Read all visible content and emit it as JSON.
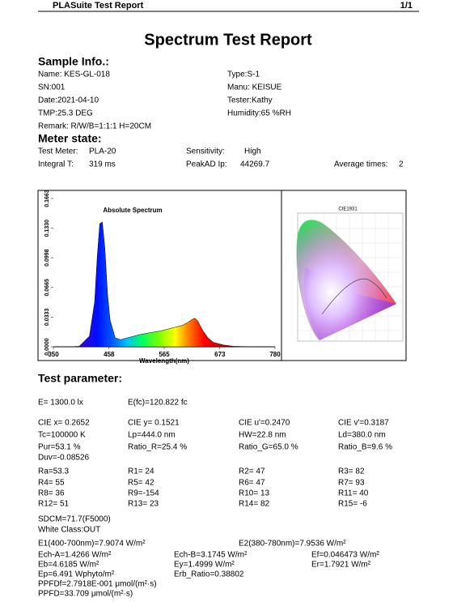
{
  "header": {
    "app": "PLASuite Test Report",
    "page": "1/1"
  },
  "title": "Spectrum Test Report",
  "sample_info": {
    "heading": "Sample Info.:",
    "rows": [
      [
        "Name: KES-GL-018",
        "Type:S-1"
      ],
      [
        "SN:001",
        "Manu: KEISUE"
      ],
      [
        "Date:2021-04-10",
        "Tester:Kathy"
      ],
      [
        "TMP:25.3 DEG",
        "Humidity:65 %RH"
      ],
      [
        "Remark: R/W/B=1:1:1   H=20CM"
      ]
    ]
  },
  "meter_state": {
    "heading": "Meter state:",
    "rows": [
      [
        "Test Meter:",
        "PLA-20",
        "Sensitivity:",
        "High"
      ],
      [
        "Integral T:",
        "319 ms",
        "PeakAD Ip:",
        "44269.7",
        "Average times:",
        "2"
      ]
    ]
  },
  "chart_data": {
    "type": "area",
    "title": "Absolute Spectrum",
    "x_label": "Wavelength(nm)",
    "x": [
      380,
      400,
      420,
      430,
      435,
      440,
      445,
      450,
      455,
      460,
      470,
      480,
      500,
      520,
      540,
      560,
      580,
      600,
      610,
      620,
      625,
      630,
      640,
      650,
      660,
      680,
      700,
      740,
      780
    ],
    "values": [
      0,
      0.0005,
      0.012,
      0.05,
      0.1,
      0.138,
      0.14,
      0.11,
      0.06,
      0.03,
      0.01,
      0.008,
      0.011,
      0.014,
      0.016,
      0.018,
      0.021,
      0.024,
      0.027,
      0.031,
      0.032,
      0.029,
      0.018,
      0.01,
      0.005,
      0.002,
      0.0005,
      0,
      0
    ],
    "xlim": [
      350,
      780
    ],
    "xticks": [
      350,
      458,
      565,
      673,
      780
    ],
    "ylim": [
      0,
      0.1663
    ],
    "yticks": [
      {
        "value": 0,
        "label": "0.0000"
      },
      0.0333,
      0.0665,
      0.0998,
      {
        "value": 0.133,
        "label": "0.1330"
      },
      0.1663
    ]
  },
  "cie": {
    "title": "CIE1931"
  },
  "test_parameter": {
    "heading": "Test parameter:",
    "rows": [
      [
        "E=  1300.0 lx",
        "E(fc)=120.822 fc"
      ],
      [
        "CIE x= 0.2652",
        "CIE y= 0.1521",
        "CIE u'=0.2470",
        "CIE v'=0.3187"
      ],
      [
        "Tc=100000 K",
        "Lp=444.0 nm",
        "HW=22.8 nm",
        "Ld=380.0 nm"
      ],
      [
        "Pur=53.1 %",
        "Ratio_R=25.4 %",
        "Ratio_G=65.0 %",
        "Ratio_B=9.6 %"
      ],
      [
        "Duv=-0.08526"
      ],
      [
        "Ra=53.3",
        "R1= 24",
        "R2= 47",
        "R3= 82"
      ],
      [
        "R4= 55",
        "R5= 42",
        "R6= 47",
        "R7= 93"
      ],
      [
        "R8= 36",
        "R9=-154",
        "R10= 13",
        "R11= 40"
      ],
      [
        "R12= 51",
        "R13= 23",
        "R14= 82",
        "R15= -6"
      ],
      [
        "SDCM=71.7(F5000)"
      ],
      [
        "White Class:OUT"
      ]
    ],
    "energy_rows": [
      [
        "E1(400-700nm)=7.9074 W/m²",
        "E2(380-780nm)=7.9536 W/m²"
      ],
      [
        "Ech-A=1.4266 W/m²",
        "Ech-B=3.1745 W/m²",
        "Ef=0.046473 W/m²"
      ],
      [
        "Eb=4.6185 W/m²",
        "Ey=1.4999 W/m²",
        "Er=1.7921 W/m²"
      ],
      [
        "Ep=6.491 Wphyto/m²",
        "Erb_Ratio=0.38802"
      ],
      [
        "PPFDf=2.7918E-001 μmol/(m²·s)"
      ],
      [
        "PPFD=33.709 μmol/(m²·s)"
      ]
    ]
  }
}
